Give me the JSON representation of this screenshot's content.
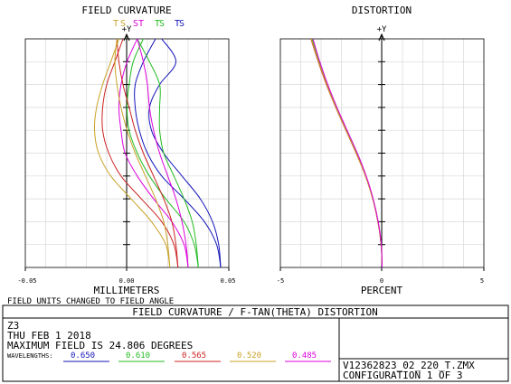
{
  "title_bar": "FIELD CURVATURE / F-TAN(THETA) DISTORTION",
  "left_panel": {
    "title": "FIELD CURVATURE",
    "axis_marker": "+Y",
    "series_marks": [
      {
        "text": "T",
        "color": "#c9a227"
      },
      {
        "text": "S",
        "color": "#c9a227"
      },
      {
        "text": "S",
        "color": "#dd00dd"
      },
      {
        "text": "T",
        "color": "#dd00dd"
      },
      {
        "text": "T",
        "color": "#22bb22"
      },
      {
        "text": "S",
        "color": "#22bb22"
      },
      {
        "text": "T",
        "color": "#1515bb"
      },
      {
        "text": "S",
        "color": "#1515bb"
      }
    ],
    "ticks": [
      "-0.05",
      "0.00",
      "0.05"
    ],
    "xlabel": "MILLIMETERS"
  },
  "right_panel": {
    "title": "DISTORTION",
    "axis_marker": "+Y",
    "ticks": [
      "-5",
      "0",
      "5"
    ],
    "xlabel": "PERCENT"
  },
  "note": "FIELD UNITS CHANGED TO FIELD ANGLE",
  "info": {
    "line1": "Z3",
    "line2": "THU FEB 1 2018",
    "line3": "MAXIMUM FIELD IS 24.806 DEGREES",
    "wavelengths_label": "WAVELENGTHS:"
  },
  "wavelengths": [
    {
      "value": "0.650",
      "color": "#1515bb"
    },
    {
      "value": "0.610",
      "color": "#22bb22"
    },
    {
      "value": "0.565",
      "color": "#cc2222"
    },
    {
      "value": "0.520",
      "color": "#c9a227"
    },
    {
      "value": "0.485",
      "color": "#dd00dd"
    }
  ],
  "file_name": "V12362823_02_220_T.ZMX",
  "configuration": "CONFIGURATION 1 OF 3",
  "chart_data": [
    {
      "type": "line",
      "title": "FIELD CURVATURE",
      "xlabel": "MILLIMETERS",
      "ylabel": "+Y",
      "xlim": [
        -0.05,
        0.05
      ],
      "ylim": [
        0,
        1
      ],
      "x_ticks": [
        "-0.05",
        "0.00",
        "0.05"
      ],
      "y": [
        0.0,
        0.1,
        0.2,
        0.3,
        0.4,
        0.5,
        0.6,
        0.7,
        0.8,
        0.9,
        1.0
      ],
      "series": [
        {
          "color": "#1515bb",
          "curve": "sagittal",
          "x": [
            0.046,
            0.045,
            0.042,
            0.036,
            0.027,
            0.018,
            0.012,
            0.011,
            0.016,
            0.024,
            0.017
          ]
        },
        {
          "color": "#1515bb",
          "curve": "tangential",
          "x": [
            0.046,
            0.044,
            0.038,
            0.028,
            0.017,
            0.01,
            0.006,
            0.004,
            0.004,
            0.008,
            0.014
          ]
        },
        {
          "color": "#22bb22",
          "curve": "sagittal",
          "x": [
            0.035,
            0.034,
            0.032,
            0.028,
            0.023,
            0.018,
            0.016,
            0.016,
            0.016,
            0.011,
            0.005
          ]
        },
        {
          "color": "#22bb22",
          "curve": "tangential",
          "x": [
            0.035,
            0.033,
            0.028,
            0.019,
            0.011,
            0.005,
            0.001,
            0.0,
            0.001,
            0.003,
            0.008
          ]
        },
        {
          "color": "#dd00dd",
          "curve": "sagittal",
          "x": [
            0.03,
            0.029,
            0.027,
            0.024,
            0.02,
            0.016,
            0.013,
            0.011,
            0.01,
            0.008,
            0.005
          ]
        },
        {
          "color": "#dd00dd",
          "curve": "tangential",
          "x": [
            0.03,
            0.028,
            0.022,
            0.013,
            0.005,
            -0.001,
            -0.003,
            -0.004,
            -0.003,
            0.0,
            0.005
          ]
        },
        {
          "color": "#cc2222",
          "curve": "sagittal",
          "x": [
            0.025,
            0.024,
            0.022,
            0.018,
            0.013,
            0.008,
            0.004,
            0.001,
            -0.002,
            -0.004,
            -0.005
          ]
        },
        {
          "color": "#cc2222",
          "curve": "tangential",
          "x": [
            0.025,
            0.023,
            0.017,
            0.007,
            -0.003,
            -0.009,
            -0.012,
            -0.012,
            -0.01,
            -0.006,
            -0.002
          ]
        },
        {
          "color": "#c9a227",
          "curve": "sagittal",
          "x": [
            0.021,
            0.02,
            0.018,
            0.014,
            0.009,
            0.004,
            0.0,
            -0.003,
            -0.005,
            -0.006,
            -0.005
          ]
        },
        {
          "color": "#c9a227",
          "curve": "tangential",
          "x": [
            0.021,
            0.019,
            0.012,
            0.002,
            -0.008,
            -0.014,
            -0.016,
            -0.015,
            -0.012,
            -0.008,
            -0.004
          ]
        }
      ]
    },
    {
      "type": "line",
      "title": "DISTORTION",
      "xlabel": "PERCENT",
      "ylabel": "+Y",
      "xlim": [
        -5,
        5
      ],
      "ylim": [
        0,
        1
      ],
      "x_ticks": [
        "-5",
        "0",
        "5"
      ],
      "y": [
        0.0,
        0.1,
        0.2,
        0.3,
        0.4,
        0.5,
        0.6,
        0.7,
        0.8,
        0.9,
        1.0
      ],
      "series": [
        {
          "color": "#1515bb",
          "x": [
            0.0,
            -0.05,
            -0.2,
            -0.45,
            -0.8,
            -1.25,
            -1.75,
            -2.25,
            -2.7,
            -3.1,
            -3.45
          ]
        },
        {
          "color": "#22bb22",
          "x": [
            0.0,
            -0.05,
            -0.2,
            -0.45,
            -0.8,
            -1.25,
            -1.75,
            -2.25,
            -2.7,
            -3.1,
            -3.45
          ]
        },
        {
          "color": "#cc2222",
          "x": [
            0.0,
            -0.05,
            -0.21,
            -0.46,
            -0.82,
            -1.28,
            -1.78,
            -2.28,
            -2.74,
            -3.14,
            -3.5
          ]
        },
        {
          "color": "#c9a227",
          "x": [
            0.0,
            -0.05,
            -0.2,
            -0.46,
            -0.82,
            -1.27,
            -1.77,
            -2.27,
            -2.72,
            -3.12,
            -3.48
          ]
        },
        {
          "color": "#dd00dd",
          "x": [
            0.0,
            -0.04,
            -0.19,
            -0.44,
            -0.78,
            -1.22,
            -1.72,
            -2.22,
            -2.67,
            -3.06,
            -3.4
          ]
        }
      ]
    }
  ]
}
